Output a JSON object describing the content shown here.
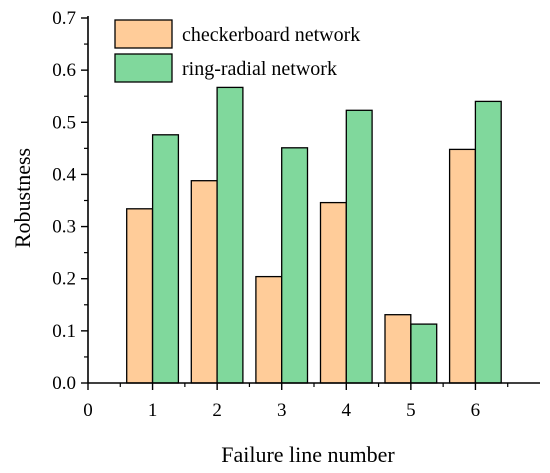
{
  "chart_data": {
    "type": "bar",
    "title": "",
    "xlabel": "Failure line number",
    "ylabel": "Robustness",
    "x_ticks": [
      "0",
      "1",
      "2",
      "3",
      "4",
      "5",
      "6"
    ],
    "x_range": [
      0,
      7
    ],
    "y_ticks": [
      "0.0",
      "0.1",
      "0.2",
      "0.3",
      "0.4",
      "0.5",
      "0.6",
      "0.7"
    ],
    "ylim": [
      0,
      0.7
    ],
    "categories": [
      1,
      2,
      3,
      4,
      5,
      6
    ],
    "series": [
      {
        "name": "checkerboard network",
        "color": "#FFCC99",
        "values": [
          0.334,
          0.388,
          0.204,
          0.346,
          0.131,
          0.448
        ]
      },
      {
        "name": "ring-radial network",
        "color": "#80D89C",
        "values": [
          0.476,
          0.567,
          0.451,
          0.523,
          0.113,
          0.54
        ]
      }
    ],
    "legend": "top-left",
    "grid": false
  }
}
